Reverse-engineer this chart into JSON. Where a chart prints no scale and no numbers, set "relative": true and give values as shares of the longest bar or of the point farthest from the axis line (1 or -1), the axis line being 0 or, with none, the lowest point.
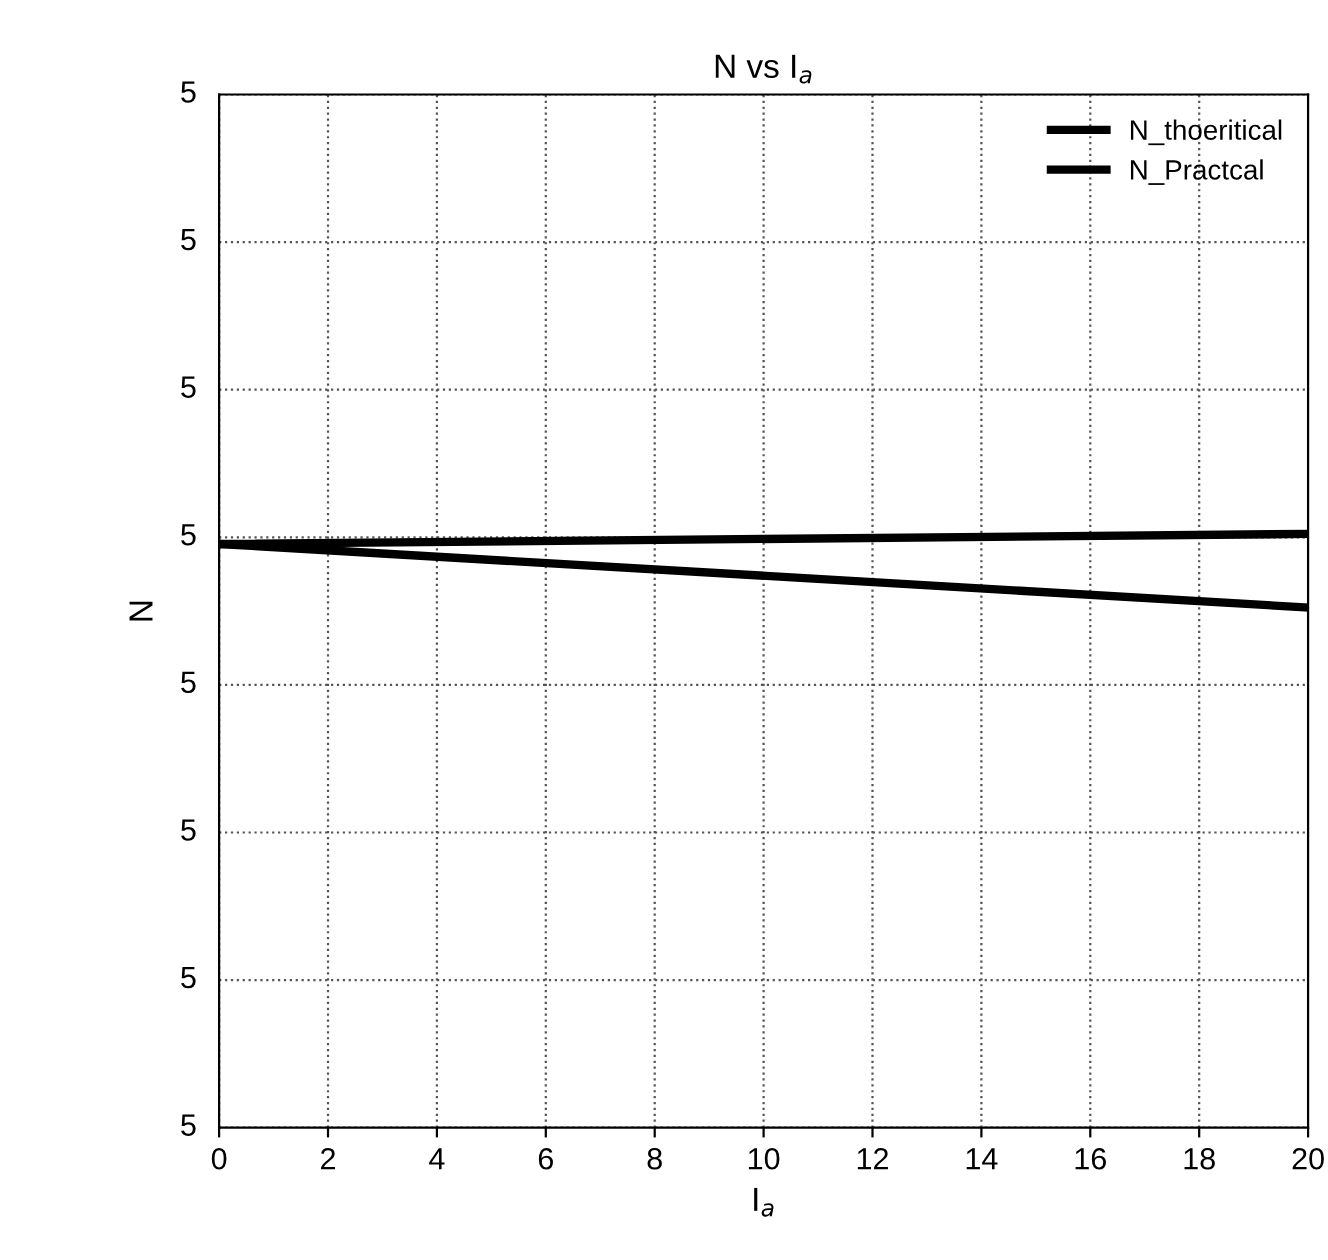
{
  "chart_data": {
    "type": "line",
    "title": "N vs I$_{a}$",
    "xlabel": "I$_{a}$",
    "ylabel": "N",
    "relative": true,
    "x": [
      0,
      20
    ],
    "series": [
      {
        "name": "N_thoeritical",
        "color": "#000000",
        "values": [
          0.983,
          1
        ]
      },
      {
        "name": "N_Practcal",
        "color": "#000000",
        "values": [
          0.983,
          0.876
        ]
      }
    ],
    "xlim": [
      0,
      20
    ],
    "xticks": [
      0,
      2,
      4,
      6,
      8,
      10,
      12,
      14,
      16,
      18,
      20
    ],
    "annotations": [
      "5",
      "5",
      "5",
      "5",
      "5",
      "5",
      "5",
      "5"
    ],
    "grid": true,
    "legend": "top right",
    "line_style": "solid",
    "marker": "none"
  }
}
